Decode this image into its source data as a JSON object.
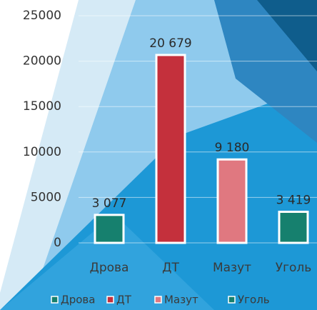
{
  "chart_data": {
    "type": "bar",
    "categories": [
      "Дрова",
      "ДТ",
      "Мазут",
      "Уголь"
    ],
    "values": [
      3077,
      20679,
      9180,
      3419
    ],
    "value_labels": [
      "3 077",
      "20 679",
      "9 180",
      "3 419"
    ],
    "colors": [
      "#16806e",
      "#c4303c",
      "#e07880",
      "#16806e"
    ],
    "ylim": [
      0,
      25000
    ],
    "yticks": [
      0,
      5000,
      10000,
      15000,
      20000,
      25000
    ],
    "grid": true,
    "legend": "bottom"
  }
}
